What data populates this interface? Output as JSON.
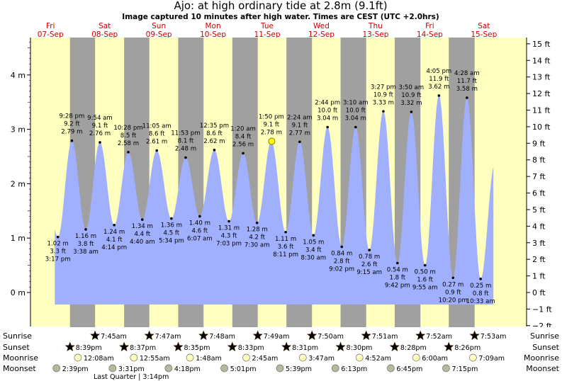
{
  "header": {
    "title": "Ajo: at high  ordinary tide at 2.8m (9.1ft)",
    "subtitle": "Image captured 10 minutes after high water. Times are CEST (UTC +2.0hrs)"
  },
  "days": [
    {
      "dow": "Fri",
      "date": "07-Sep"
    },
    {
      "dow": "Sat",
      "date": "08-Sep"
    },
    {
      "dow": "Sun",
      "date": "09-Sep"
    },
    {
      "dow": "Mon",
      "date": "10-Sep"
    },
    {
      "dow": "Tue",
      "date": "11-Sep"
    },
    {
      "dow": "Wed",
      "date": "12-Sep"
    },
    {
      "dow": "Thu",
      "date": "13-Sep"
    },
    {
      "dow": "Fri",
      "date": "14-Sep"
    },
    {
      "dow": "Sat",
      "date": "15-Sep"
    }
  ],
  "chart_data": {
    "type": "area",
    "left_axis": {
      "unit": "m",
      "ticks": [
        "0 m",
        "1 m",
        "2 m",
        "3 m",
        "4 m"
      ]
    },
    "right_axis": {
      "unit": "ft",
      "ticks": [
        "−2 ft",
        "−1 ft",
        "0 ft",
        "1 ft",
        "2 ft",
        "3 ft",
        "4 ft",
        "5 ft",
        "6 ft",
        "7 ft",
        "8 ft",
        "9 ft",
        "10 ft",
        "11 ft",
        "12 ft",
        "13 ft",
        "14 ft",
        "15 ft"
      ]
    },
    "ylim_m": [
      -0.78,
      4.72
    ],
    "colors": {
      "day": "#ffffc0",
      "night": "#a0a0a0",
      "water": "#a0b0ff",
      "sunrise": "#e8c800",
      "sunset": "#d03000",
      "moon": "#ffffc0",
      "moonset": "#b8b8a0"
    },
    "extremes": [
      {
        "time": "3:17 pm",
        "ft": "3.3 ft",
        "m": "1.02 m",
        "value": 1.02,
        "day": 0,
        "hour": 15.28,
        "type": "low"
      },
      {
        "time": "9:28 pm",
        "ft": "9.2 ft",
        "m": "2.79 m",
        "value": 2.79,
        "day": 0,
        "hour": 21.47,
        "type": "high"
      },
      {
        "time": "3:38 am",
        "ft": "3.8 ft",
        "m": "1.16 m",
        "value": 1.16,
        "day": 1,
        "hour": 3.63,
        "type": "low"
      },
      {
        "time": "9:54 am",
        "ft": "9.1 ft",
        "m": "2.76 m",
        "value": 2.76,
        "day": 1,
        "hour": 9.9,
        "type": "high"
      },
      {
        "time": "4:14 pm",
        "ft": "4.1 ft",
        "m": "1.24 m",
        "value": 1.24,
        "day": 1,
        "hour": 16.23,
        "type": "low"
      },
      {
        "time": "10:28 pm",
        "ft": "8.5 ft",
        "m": "2.58 m",
        "value": 2.58,
        "day": 1,
        "hour": 22.47,
        "type": "high"
      },
      {
        "time": "4:40 am",
        "ft": "4.4 ft",
        "m": "1.34 m",
        "value": 1.34,
        "day": 2,
        "hour": 4.67,
        "type": "low"
      },
      {
        "time": "11:05 am",
        "ft": "8.6 ft",
        "m": "2.61 m",
        "value": 2.61,
        "day": 2,
        "hour": 11.08,
        "type": "high"
      },
      {
        "time": "5:34 pm",
        "ft": "4.5 ft",
        "m": "1.36 m",
        "value": 1.36,
        "day": 2,
        "hour": 17.57,
        "type": "low"
      },
      {
        "time": "11:53 pm",
        "ft": "8.1 ft",
        "m": "2.48 m",
        "value": 2.48,
        "day": 2,
        "hour": 23.88,
        "type": "high"
      },
      {
        "time": "6:07 am",
        "ft": "4.6 ft",
        "m": "1.40 m",
        "value": 1.4,
        "day": 3,
        "hour": 6.12,
        "type": "low"
      },
      {
        "time": "12:35 pm",
        "ft": "8.6 ft",
        "m": "2.62 m",
        "value": 2.62,
        "day": 3,
        "hour": 12.58,
        "type": "high"
      },
      {
        "time": "7:03 pm",
        "ft": "4.3 ft",
        "m": "1.31 m",
        "value": 1.31,
        "day": 3,
        "hour": 19.05,
        "type": "low"
      },
      {
        "time": "1:20 am",
        "ft": "8.4 ft",
        "m": "2.56 m",
        "value": 2.56,
        "day": 4,
        "hour": 1.33,
        "type": "high"
      },
      {
        "time": "7:30 am",
        "ft": "4.2 ft",
        "m": "1.28 m",
        "value": 1.28,
        "day": 4,
        "hour": 7.5,
        "type": "low"
      },
      {
        "time": "1:50 pm",
        "ft": "9.1 ft",
        "m": "2.78 m",
        "value": 2.78,
        "day": 4,
        "hour": 13.83,
        "type": "high"
      },
      {
        "time": "8:11 pm",
        "ft": "3.6 ft",
        "m": "1.11 m",
        "value": 1.11,
        "day": 4,
        "hour": 20.18,
        "type": "low"
      },
      {
        "time": "2:24 am",
        "ft": "9.1 ft",
        "m": "2.77 m",
        "value": 2.77,
        "day": 5,
        "hour": 2.4,
        "type": "high"
      },
      {
        "time": "8:30 am",
        "ft": "3.4 ft",
        "m": "1.05 m",
        "value": 1.05,
        "day": 5,
        "hour": 8.5,
        "type": "low"
      },
      {
        "time": "2:44 pm",
        "ft": "10.0 ft",
        "m": "3.04 m",
        "value": 3.04,
        "day": 5,
        "hour": 14.73,
        "type": "high"
      },
      {
        "time": "9:02 pm",
        "ft": "2.8 ft",
        "m": "0.84 m",
        "value": 0.84,
        "day": 5,
        "hour": 21.03,
        "type": "low"
      },
      {
        "time": "3:10 am",
        "ft": "10.0 ft",
        "m": "3.04 m",
        "value": 3.04,
        "day": 6,
        "hour": 3.17,
        "type": "high"
      },
      {
        "time": "9:15 am",
        "ft": "2.6 ft",
        "m": "0.78 m",
        "value": 0.78,
        "day": 6,
        "hour": 9.25,
        "type": "low"
      },
      {
        "time": "3:27 pm",
        "ft": "10.9 ft",
        "m": "3.33 m",
        "value": 3.33,
        "day": 6,
        "hour": 15.45,
        "type": "high"
      },
      {
        "time": "9:42 pm",
        "ft": "1.8 ft",
        "m": "0.54 m",
        "value": 0.54,
        "day": 6,
        "hour": 21.7,
        "type": "low"
      },
      {
        "time": "3:50 am",
        "ft": "10.9 ft",
        "m": "3.32 m",
        "value": 3.32,
        "day": 7,
        "hour": 3.83,
        "type": "high"
      },
      {
        "time": "9:55 am",
        "ft": "1.6 ft",
        "m": "0.50 m",
        "value": 0.5,
        "day": 7,
        "hour": 9.92,
        "type": "low"
      },
      {
        "time": "4:05 pm",
        "ft": "11.9 ft",
        "m": "3.62 m",
        "value": 3.62,
        "day": 7,
        "hour": 16.08,
        "type": "high"
      },
      {
        "time": "10:20 pm",
        "ft": "0.9 ft",
        "m": "0.27 m",
        "value": 0.27,
        "day": 7,
        "hour": 22.33,
        "type": "low"
      },
      {
        "time": "4:28 am",
        "ft": "11.7 ft",
        "m": "3.58 m",
        "value": 3.58,
        "day": 8,
        "hour": 4.47,
        "type": "high"
      },
      {
        "time": "10:33 am",
        "ft": "0.8 ft",
        "m": "0.25 m",
        "value": 0.25,
        "day": 8,
        "hour": 10.55,
        "type": "low"
      }
    ],
    "current": {
      "day": 4,
      "hour": 14.0,
      "value": 2.78
    }
  },
  "events": {
    "row_labels": {
      "sunrise": "Sunrise",
      "sunset": "Sunset",
      "moonrise": "Moonrise",
      "moonset": "Moonset"
    },
    "sunrise": [
      {
        "day": 1,
        "hour": 7.75,
        "text": "7:45am"
      },
      {
        "day": 2,
        "hour": 7.78,
        "text": "7:47am"
      },
      {
        "day": 3,
        "hour": 7.8,
        "text": "7:48am"
      },
      {
        "day": 4,
        "hour": 7.82,
        "text": "7:49am"
      },
      {
        "day": 5,
        "hour": 7.83,
        "text": "7:50am"
      },
      {
        "day": 6,
        "hour": 7.85,
        "text": "7:51am"
      },
      {
        "day": 7,
        "hour": 7.87,
        "text": "7:52am"
      },
      {
        "day": 8,
        "hour": 7.88,
        "text": "7:53am"
      }
    ],
    "sunset": [
      {
        "day": 0,
        "hour": 20.65,
        "text": "8:39pm"
      },
      {
        "day": 1,
        "hour": 20.62,
        "text": "8:37pm"
      },
      {
        "day": 2,
        "hour": 20.58,
        "text": "8:35pm"
      },
      {
        "day": 3,
        "hour": 20.55,
        "text": "8:33pm"
      },
      {
        "day": 4,
        "hour": 20.52,
        "text": "8:31pm"
      },
      {
        "day": 5,
        "hour": 20.5,
        "text": "8:30pm"
      },
      {
        "day": 6,
        "hour": 20.47,
        "text": "8:28pm"
      },
      {
        "day": 7,
        "hour": 20.43,
        "text": "8:26pm"
      }
    ],
    "moonrise": [
      {
        "day": 1,
        "hour": 0.13,
        "text": "12:08am"
      },
      {
        "day": 2,
        "hour": 0.92,
        "text": "12:55am"
      },
      {
        "day": 3,
        "hour": 1.8,
        "text": "1:48am"
      },
      {
        "day": 4,
        "hour": 2.75,
        "text": "2:45am"
      },
      {
        "day": 5,
        "hour": 3.78,
        "text": "3:47am"
      },
      {
        "day": 6,
        "hour": 4.87,
        "text": "4:52am"
      },
      {
        "day": 7,
        "hour": 6.0,
        "text": "6:00am"
      },
      {
        "day": 8,
        "hour": 7.15,
        "text": "7:09am"
      }
    ],
    "moonset": [
      {
        "day": 0,
        "hour": 14.65,
        "text": "2:39pm"
      },
      {
        "day": 1,
        "hour": 15.52,
        "text": "3:31pm"
      },
      {
        "day": 2,
        "hour": 16.3,
        "text": "4:18pm"
      },
      {
        "day": 3,
        "hour": 17.02,
        "text": "5:01pm"
      },
      {
        "day": 4,
        "hour": 17.65,
        "text": "5:39pm"
      },
      {
        "day": 5,
        "hour": 18.22,
        "text": "6:13pm"
      },
      {
        "day": 6,
        "hour": 18.75,
        "text": "6:45pm"
      },
      {
        "day": 7,
        "hour": 19.25,
        "text": "7:15pm"
      }
    ],
    "phase": {
      "day": 1,
      "hour": 15.23,
      "text": "Last Quarter | 3:14pm"
    }
  }
}
